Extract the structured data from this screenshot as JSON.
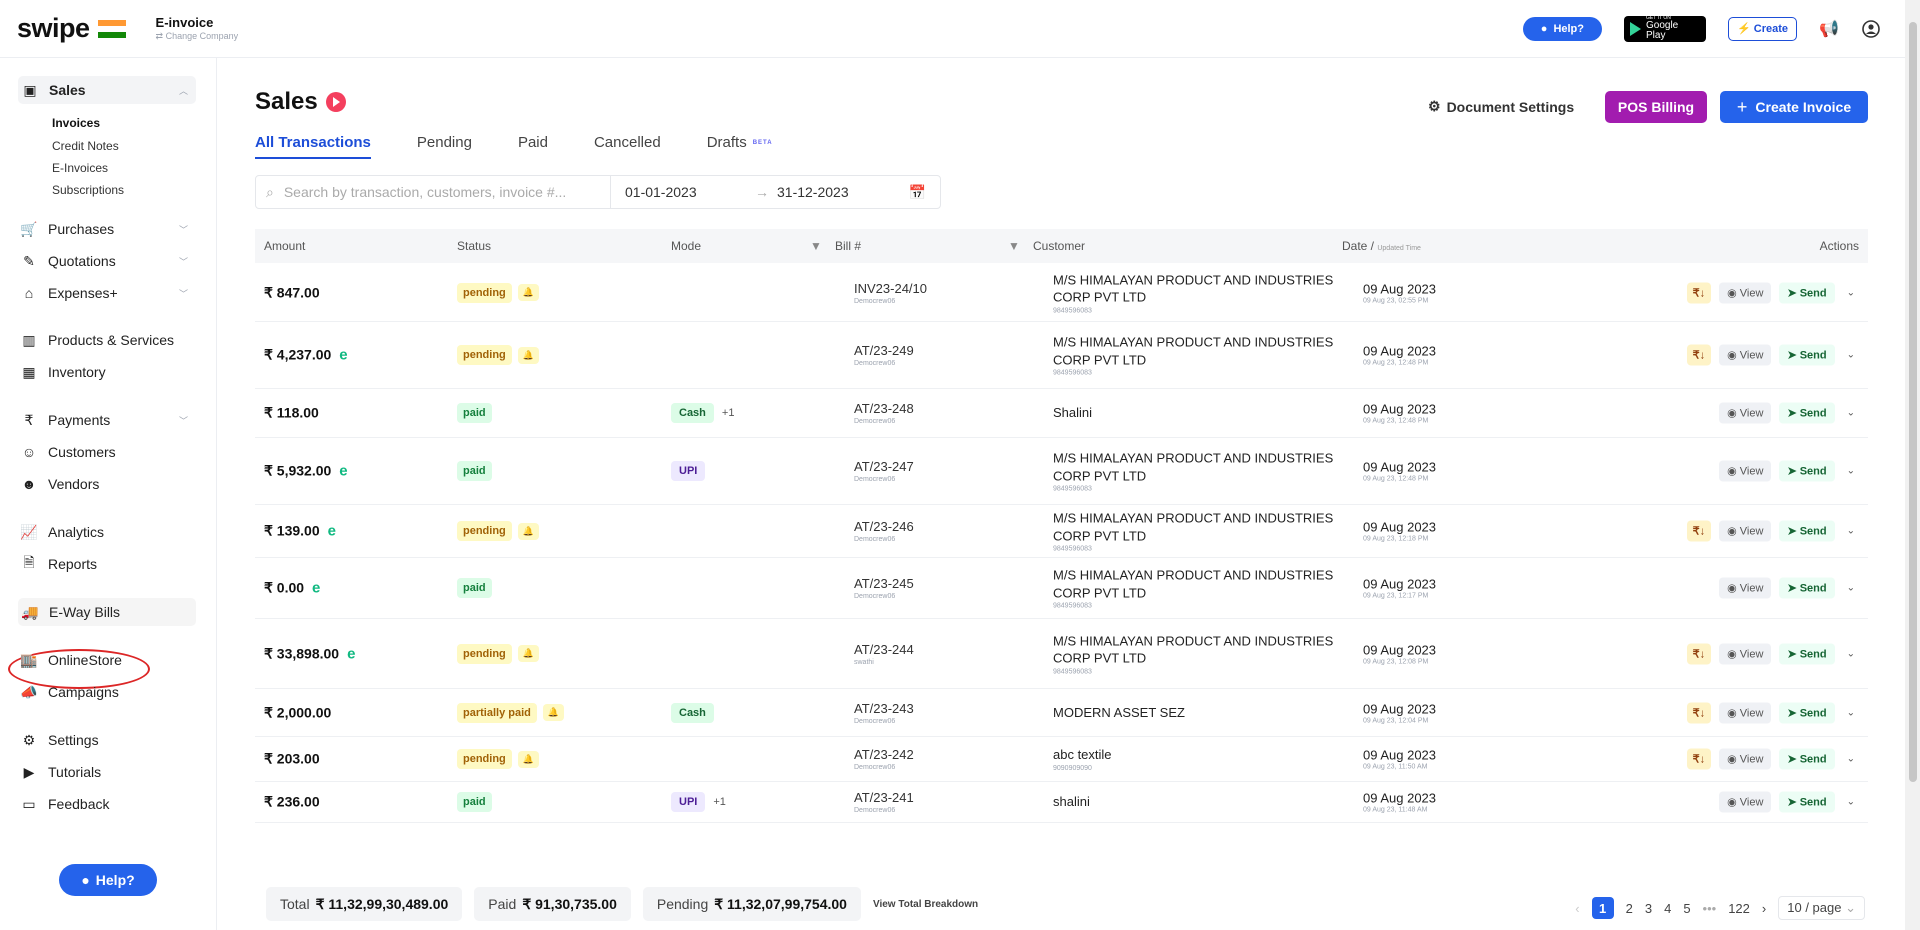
{
  "app": {
    "logo": "swipe",
    "company_name": "E-invoice",
    "company_sub": "⇄ Change Company"
  },
  "topbar": {
    "help": "Help?",
    "gplay_small": "GET IT ON",
    "gplay_big": "Google Play",
    "create": "⚡ Create"
  },
  "sidebar": {
    "sales": "Sales",
    "sales_items": [
      "Invoices",
      "Credit Notes",
      "E-Invoices",
      "Subscriptions"
    ],
    "purchases": "Purchases",
    "quotations": "Quotations",
    "expenses": "Expenses+",
    "products": "Products & Services",
    "inventory": "Inventory",
    "payments": "Payments",
    "customers": "Customers",
    "vendors": "Vendors",
    "analytics": "Analytics",
    "reports": "Reports",
    "eway": "E-Way Bills",
    "onlinestore": "OnlineStore",
    "campaigns": "Campaigns",
    "settings": "Settings",
    "tutorials": "Tutorials",
    "feedback": "Feedback",
    "help": "Help?"
  },
  "page": {
    "title": "Sales",
    "tabs": [
      "All Transactions",
      "Pending",
      "Paid",
      "Cancelled",
      "Drafts"
    ],
    "beta": "BETA",
    "doc_settings": "Document Settings",
    "pos": "POS Billing",
    "create_invoice": "Create Invoice",
    "search_placeholder": "Search by transaction, customers, invoice #...",
    "date_from": "01-01-2023",
    "date_to": "31-12-2023"
  },
  "table": {
    "headers": {
      "amount": "Amount",
      "status": "Status",
      "mode": "Mode",
      "bill": "Bill #",
      "customer": "Customer",
      "date": "Date /",
      "date_sub": "Updated Time",
      "actions": "Actions"
    },
    "rows": [
      {
        "amount": "₹ 847.00",
        "einv": "",
        "status": "pending",
        "bell": true,
        "mode": "",
        "mode_plus": "",
        "bill": "INV23-24/10",
        "by": "Democrew06",
        "cust": "M/S HIMALAYAN PRODUCT AND INDUSTRIES CORP PVT LTD",
        "phone": "9849596083",
        "date": "09 Aug 2023",
        "time": "09 Aug 23, 02:55 PM",
        "pay": true
      },
      {
        "amount": "₹ 4,237.00",
        "einv": "e",
        "status": "pending",
        "bell": true,
        "mode": "",
        "mode_plus": "",
        "bill": "AT/23-249",
        "by": "Democrew06",
        "cust": "M/S HIMALAYAN PRODUCT AND INDUSTRIES CORP PVT LTD",
        "phone": "9849596083",
        "date": "09 Aug 2023",
        "time": "09 Aug 23, 12:48 PM",
        "pay": true
      },
      {
        "amount": "₹ 118.00",
        "einv": "",
        "status": "paid",
        "bell": false,
        "mode": "Cash",
        "mode_plus": "+1",
        "bill": "AT/23-248",
        "by": "Democrew06",
        "cust": "Shalini",
        "phone": "",
        "date": "09 Aug 2023",
        "time": "09 Aug 23, 12:48 PM",
        "pay": false
      },
      {
        "amount": "₹ 5,932.00",
        "einv": "e",
        "status": "paid",
        "bell": false,
        "mode": "UPI",
        "mode_plus": "",
        "bill": "AT/23-247",
        "by": "Democrew06",
        "cust": "M/S HIMALAYAN PRODUCT AND INDUSTRIES CORP PVT LTD",
        "phone": "9849596083",
        "date": "09 Aug 2023",
        "time": "09 Aug 23, 12:48 PM",
        "pay": false
      },
      {
        "amount": "₹ 139.00",
        "einv": "e",
        "status": "pending",
        "bell": true,
        "mode": "",
        "mode_plus": "",
        "bill": "AT/23-246",
        "by": "Democrew06",
        "cust": "M/S HIMALAYAN PRODUCT AND INDUSTRIES CORP PVT LTD",
        "phone": "9849596083",
        "date": "09 Aug 2023",
        "time": "09 Aug 23, 12:18 PM",
        "pay": true
      },
      {
        "amount": "₹ 0.00",
        "einv": "e",
        "status": "paid",
        "bell": false,
        "mode": "",
        "mode_plus": "",
        "bill": "AT/23-245",
        "by": "Democrew06",
        "cust": "M/S HIMALAYAN PRODUCT AND INDUSTRIES CORP PVT LTD",
        "phone": "9849596083",
        "date": "09 Aug 2023",
        "time": "09 Aug 23, 12:17 PM",
        "pay": false
      },
      {
        "amount": "₹ 33,898.00",
        "einv": "e",
        "status": "pending",
        "bell": true,
        "mode": "",
        "mode_plus": "",
        "bill": "AT/23-244",
        "by": "swathi",
        "cust": "M/S HIMALAYAN PRODUCT AND INDUSTRIES CORP PVT LTD",
        "phone": "9849596083",
        "date": "09 Aug 2023",
        "time": "09 Aug 23, 12:08 PM",
        "pay": true
      },
      {
        "amount": "₹ 2,000.00",
        "einv": "",
        "status": "partially paid",
        "bell": true,
        "mode": "Cash",
        "mode_plus": "",
        "bill": "AT/23-243",
        "by": "Democrew06",
        "cust": "MODERN ASSET SEZ",
        "phone": "",
        "date": "09 Aug 2023",
        "time": "09 Aug 23, 12:04 PM",
        "pay": true
      },
      {
        "amount": "₹ 203.00",
        "einv": "",
        "status": "pending",
        "bell": true,
        "mode": "",
        "mode_plus": "",
        "bill": "AT/23-242",
        "by": "Democrew06",
        "cust": "abc textile",
        "phone": "9090909090",
        "date": "09 Aug 2023",
        "time": "09 Aug 23, 11:50 AM",
        "pay": true
      },
      {
        "amount": "₹ 236.00",
        "einv": "",
        "status": "paid",
        "bell": false,
        "mode": "UPI",
        "mode_plus": "+1",
        "bill": "AT/23-241",
        "by": "Democrew06",
        "cust": "shalini",
        "phone": "",
        "date": "09 Aug 2023",
        "time": "09 Aug 23, 11:48 AM",
        "pay": false
      }
    ],
    "actions": {
      "pay": "₹↓",
      "view": "View",
      "send": "Send"
    }
  },
  "footer": {
    "total_label": "Total",
    "total": "₹ 11,32,99,30,489.00",
    "paid_label": "Paid",
    "paid": "₹ 91,30,735.00",
    "pending_label": "Pending",
    "pending": "₹ 11,32,07,99,754.00",
    "breakdown": "View Total Breakdown",
    "pages": [
      "1",
      "2",
      "3",
      "4",
      "5",
      "•••",
      "122"
    ],
    "page_size": "10 / page"
  }
}
